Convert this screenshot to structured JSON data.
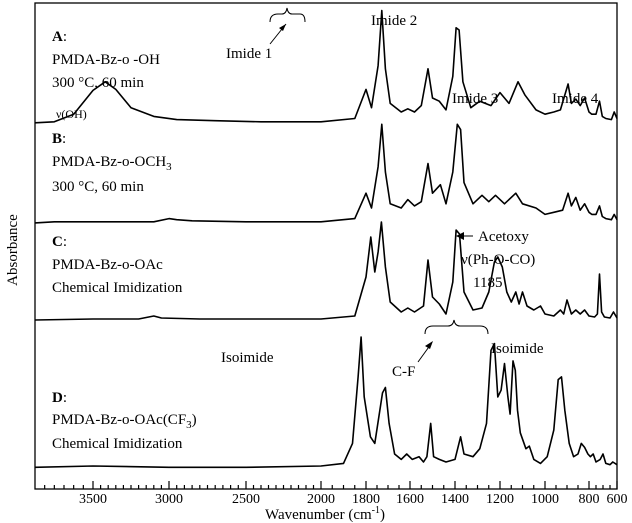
{
  "chart_data": {
    "type": "line",
    "xlabel": "Wavenumber (cm",
    "xlabel_sup": "-1",
    "xlabel_end": ")",
    "ylabel": "Absorbance",
    "xlim": [
      3800,
      600
    ],
    "x_reversed": true,
    "xticks": [
      3500,
      3000,
      2500,
      2000,
      1800,
      1600,
      1400,
      1200,
      1000,
      800,
      600
    ],
    "series": [
      {
        "letter": "A",
        "colon": ":",
        "sample": "PMDA-Bz-o -OH",
        "conditions": "300 °C, 60 min",
        "baseline": 0.0,
        "points": [
          [
            3800,
            0.02
          ],
          [
            3700,
            0.03
          ],
          [
            3600,
            0.1
          ],
          [
            3500,
            0.32
          ],
          [
            3420,
            0.4
          ],
          [
            3350,
            0.33
          ],
          [
            3250,
            0.16
          ],
          [
            3100,
            0.08
          ],
          [
            2950,
            0.05
          ],
          [
            2700,
            0.04
          ],
          [
            2400,
            0.03
          ],
          [
            2000,
            0.03
          ],
          [
            1850,
            0.06
          ],
          [
            1800,
            0.33
          ],
          [
            1775,
            0.16
          ],
          [
            1745,
            0.55
          ],
          [
            1728,
            1.06
          ],
          [
            1712,
            0.52
          ],
          [
            1690,
            0.2
          ],
          [
            1640,
            0.12
          ],
          [
            1610,
            0.15
          ],
          [
            1580,
            0.12
          ],
          [
            1550,
            0.18
          ],
          [
            1520,
            0.52
          ],
          [
            1500,
            0.25
          ],
          [
            1470,
            0.22
          ],
          [
            1440,
            0.14
          ],
          [
            1410,
            0.45
          ],
          [
            1395,
            0.9
          ],
          [
            1382,
            0.88
          ],
          [
            1365,
            0.4
          ],
          [
            1330,
            0.16
          ],
          [
            1290,
            0.22
          ],
          [
            1240,
            0.18
          ],
          [
            1200,
            0.3
          ],
          [
            1160,
            0.2
          ],
          [
            1120,
            0.4
          ],
          [
            1090,
            0.28
          ],
          [
            1040,
            0.14
          ],
          [
            1000,
            0.1
          ],
          [
            960,
            0.12
          ],
          [
            930,
            0.14
          ],
          [
            895,
            0.38
          ],
          [
            880,
            0.2
          ],
          [
            860,
            0.24
          ],
          [
            840,
            0.18
          ],
          [
            820,
            0.25
          ],
          [
            800,
            0.12
          ],
          [
            780,
            0.1
          ],
          [
            750,
            0.1
          ],
          [
            725,
            0.22
          ],
          [
            705,
            0.08
          ],
          [
            680,
            0.06
          ],
          [
            640,
            0.05
          ],
          [
            620,
            0.12
          ],
          [
            600,
            0.06
          ]
        ]
      },
      {
        "letter": "B",
        "colon": ":",
        "sample": "PMDA-Bz-o-OCH",
        "sample_sub": "3",
        "conditions": "300 °C, 60 min",
        "baseline": 0.0,
        "points": [
          [
            3800,
            0.02
          ],
          [
            3700,
            0.03
          ],
          [
            3500,
            0.03
          ],
          [
            3100,
            0.03
          ],
          [
            3000,
            0.06
          ],
          [
            2950,
            0.05
          ],
          [
            2850,
            0.04
          ],
          [
            2500,
            0.03
          ],
          [
            2000,
            0.03
          ],
          [
            1850,
            0.06
          ],
          [
            1800,
            0.3
          ],
          [
            1775,
            0.16
          ],
          [
            1745,
            0.55
          ],
          [
            1728,
            0.95
          ],
          [
            1712,
            0.5
          ],
          [
            1690,
            0.2
          ],
          [
            1640,
            0.16
          ],
          [
            1610,
            0.24
          ],
          [
            1580,
            0.18
          ],
          [
            1550,
            0.22
          ],
          [
            1520,
            0.58
          ],
          [
            1500,
            0.3
          ],
          [
            1465,
            0.38
          ],
          [
            1440,
            0.2
          ],
          [
            1410,
            0.5
          ],
          [
            1390,
            0.95
          ],
          [
            1375,
            0.9
          ],
          [
            1360,
            0.4
          ],
          [
            1320,
            0.2
          ],
          [
            1280,
            0.28
          ],
          [
            1250,
            0.22
          ],
          [
            1220,
            0.28
          ],
          [
            1180,
            0.2
          ],
          [
            1130,
            0.3
          ],
          [
            1100,
            0.2
          ],
          [
            1040,
            0.16
          ],
          [
            1000,
            0.1
          ],
          [
            960,
            0.12
          ],
          [
            920,
            0.14
          ],
          [
            895,
            0.3
          ],
          [
            880,
            0.18
          ],
          [
            860,
            0.26
          ],
          [
            840,
            0.14
          ],
          [
            820,
            0.2
          ],
          [
            800,
            0.12
          ],
          [
            780,
            0.1
          ],
          [
            750,
            0.1
          ],
          [
            725,
            0.18
          ],
          [
            705,
            0.08
          ],
          [
            680,
            0.06
          ],
          [
            640,
            0.05
          ],
          [
            620,
            0.1
          ],
          [
            600,
            0.05
          ]
        ]
      },
      {
        "letter": "C",
        "colon": ":",
        "sample": "PMDA-Bz-o-OAc",
        "conditions": "Chemical Imidization",
        "baseline": 0.0,
        "points": [
          [
            3800,
            0.02
          ],
          [
            3500,
            0.03
          ],
          [
            3200,
            0.03
          ],
          [
            3100,
            0.06
          ],
          [
            3050,
            0.04
          ],
          [
            2800,
            0.03
          ],
          [
            2000,
            0.03
          ],
          [
            1850,
            0.06
          ],
          [
            1800,
            0.45
          ],
          [
            1778,
            0.85
          ],
          [
            1760,
            0.5
          ],
          [
            1745,
            0.7
          ],
          [
            1730,
            1.0
          ],
          [
            1712,
            0.55
          ],
          [
            1690,
            0.2
          ],
          [
            1640,
            0.1
          ],
          [
            1610,
            0.14
          ],
          [
            1580,
            0.1
          ],
          [
            1540,
            0.16
          ],
          [
            1520,
            0.62
          ],
          [
            1500,
            0.25
          ],
          [
            1470,
            0.18
          ],
          [
            1440,
            0.08
          ],
          [
            1410,
            0.4
          ],
          [
            1395,
            0.92
          ],
          [
            1380,
            0.88
          ],
          [
            1360,
            0.3
          ],
          [
            1320,
            0.12
          ],
          [
            1280,
            0.14
          ],
          [
            1250,
            0.3
          ],
          [
            1225,
            0.6
          ],
          [
            1210,
            0.65
          ],
          [
            1190,
            0.55
          ],
          [
            1170,
            0.3
          ],
          [
            1150,
            0.2
          ],
          [
            1130,
            0.3
          ],
          [
            1115,
            0.18
          ],
          [
            1100,
            0.3
          ],
          [
            1080,
            0.16
          ],
          [
            1050,
            0.12
          ],
          [
            1020,
            0.16
          ],
          [
            1000,
            0.08
          ],
          [
            960,
            0.06
          ],
          [
            930,
            0.12
          ],
          [
            915,
            0.08
          ],
          [
            900,
            0.22
          ],
          [
            880,
            0.08
          ],
          [
            860,
            0.12
          ],
          [
            840,
            0.08
          ],
          [
            820,
            0.12
          ],
          [
            800,
            0.06
          ],
          [
            760,
            0.05
          ],
          [
            740,
            0.08
          ],
          [
            725,
            0.48
          ],
          [
            710,
            0.1
          ],
          [
            690,
            0.05
          ],
          [
            650,
            0.04
          ],
          [
            625,
            0.1
          ],
          [
            600,
            0.04
          ]
        ]
      },
      {
        "letter": "D",
        "colon": ":",
        "sample": "PMDA-Bz-o-OAc(CF",
        "sample_sub": "3",
        "sample_end": ")",
        "conditions": "Chemical Imidization",
        "baseline": 0.0,
        "points": [
          [
            3800,
            0.02
          ],
          [
            3500,
            0.03
          ],
          [
            3000,
            0.02
          ],
          [
            2500,
            0.02
          ],
          [
            2000,
            0.03
          ],
          [
            1900,
            0.05
          ],
          [
            1860,
            0.2
          ],
          [
            1835,
            0.7
          ],
          [
            1822,
            1.0
          ],
          [
            1808,
            0.55
          ],
          [
            1780,
            0.25
          ],
          [
            1760,
            0.2
          ],
          [
            1725,
            0.58
          ],
          [
            1712,
            0.62
          ],
          [
            1695,
            0.35
          ],
          [
            1670,
            0.12
          ],
          [
            1640,
            0.08
          ],
          [
            1615,
            0.12
          ],
          [
            1590,
            0.08
          ],
          [
            1560,
            0.1
          ],
          [
            1540,
            0.06
          ],
          [
            1525,
            0.1
          ],
          [
            1508,
            0.35
          ],
          [
            1495,
            0.1
          ],
          [
            1470,
            0.08
          ],
          [
            1440,
            0.06
          ],
          [
            1400,
            0.08
          ],
          [
            1375,
            0.25
          ],
          [
            1360,
            0.12
          ],
          [
            1320,
            0.1
          ],
          [
            1290,
            0.16
          ],
          [
            1260,
            0.35
          ],
          [
            1240,
            0.9
          ],
          [
            1225,
            0.95
          ],
          [
            1210,
            0.55
          ],
          [
            1195,
            0.6
          ],
          [
            1180,
            0.8
          ],
          [
            1165,
            0.55
          ],
          [
            1155,
            0.42
          ],
          [
            1142,
            0.82
          ],
          [
            1132,
            0.75
          ],
          [
            1122,
            0.45
          ],
          [
            1110,
            0.28
          ],
          [
            1085,
            0.16
          ],
          [
            1070,
            0.18
          ],
          [
            1050,
            0.08
          ],
          [
            1020,
            0.05
          ],
          [
            990,
            0.1
          ],
          [
            960,
            0.3
          ],
          [
            940,
            0.68
          ],
          [
            925,
            0.7
          ],
          [
            910,
            0.45
          ],
          [
            890,
            0.2
          ],
          [
            870,
            0.1
          ],
          [
            850,
            0.12
          ],
          [
            835,
            0.2
          ],
          [
            820,
            0.17
          ],
          [
            805,
            0.12
          ],
          [
            790,
            0.1
          ],
          [
            770,
            0.12
          ],
          [
            750,
            0.06
          ],
          [
            720,
            0.08
          ],
          [
            700,
            0.12
          ],
          [
            680,
            0.05
          ],
          [
            650,
            0.04
          ],
          [
            630,
            0.06
          ],
          [
            600,
            0.04
          ]
        ]
      }
    ],
    "annotations": {
      "imide1": "Imide 1",
      "imide2": "Imide 2",
      "imide3": "Imide 3",
      "imide4": "Imide 4",
      "voh": "ν(OH)",
      "acetoxy": "Acetoxy",
      "vph": "ν(Ph-O-CO)",
      "n1185": "1185",
      "isoimide_left": "Isoimide",
      "isoimide_right": "Isoimide",
      "cf": "C-F"
    }
  }
}
